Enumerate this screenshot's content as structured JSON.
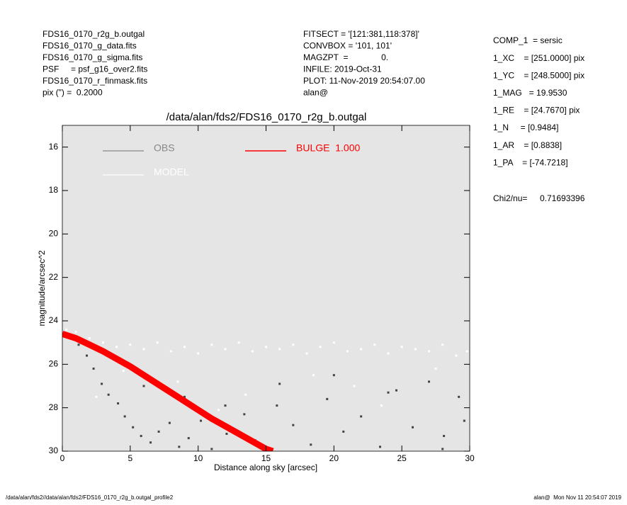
{
  "header": {
    "left": [
      "FDS16_0170_r2g_b.outgal",
      "FDS16_0170_g_data.fits",
      "FDS16_0170_g_sigma.fits",
      "PSF     = psf_g16_over2.fits",
      "FDS16_0170_r_finmask.fits",
      "pix (\") =  0.2000"
    ],
    "middle": [
      "FITSECT = '[121:381,118:378]'",
      "CONVBOX = '101, 101'",
      "MAGZPT  =              0.",
      "INFILE: 2019-Oct-31",
      "PLOT: 11-Nov-2019 20:54:07.00",
      "alan@"
    ],
    "right": [
      "COMP_1  = sersic",
      "1_XC    = [251.0000] pix",
      "1_YC    = [248.5000] pix",
      "1_MAG   = 19.9530",
      "1_RE    = [24.7670] pix",
      "1_N     = [0.9484]",
      "1_AR    = [0.8838]",
      "1_PA    = [-74.7218]"
    ],
    "chi2_label": "Chi2/nu=",
    "chi2_value": "0.71693396"
  },
  "footer": {
    "left": "/data/alan/fds2//data/alan/fds2/FDS16_0170_r2g_b.outgal_profile2",
    "right": "alan@  Mon Nov 11 20:54:07 2019"
  },
  "chart_data": {
    "type": "scatter",
    "title": "/data/alan/fds2/FDS16_0170_r2g_b.outgal",
    "xlabel": "Distance along sky [arcsec]",
    "ylabel": "magnitude/arcsec^2",
    "xlim": [
      0,
      30
    ],
    "ylim": [
      30,
      15
    ],
    "xticks": [
      0,
      5,
      10,
      15,
      20,
      25,
      30
    ],
    "yticks": [
      16,
      18,
      20,
      22,
      24,
      26,
      28,
      30
    ],
    "background": "#e5e5e5",
    "series": [
      {
        "name": "OBS",
        "color": "#888888",
        "point_color": "#444444",
        "x": [
          0.5,
          1.2,
          1.8,
          2.3,
          2.9,
          3.4,
          4.1,
          4.6,
          5.2,
          5.8,
          6.5,
          7.1,
          7.9,
          8.6,
          9.3,
          10.2,
          11,
          12.1,
          13.4,
          14.2,
          15.8,
          17,
          18.3,
          19.5,
          20.7,
          22,
          23.4,
          24.6,
          25.8,
          27,
          28.1,
          29.2,
          29.6,
          6,
          9,
          12,
          16,
          20,
          24,
          28
        ],
        "values": [
          24.7,
          25.1,
          25.6,
          26.2,
          26.9,
          27.4,
          27.8,
          28.4,
          28.9,
          29.3,
          29.6,
          29.1,
          28.7,
          29.8,
          29.4,
          28.6,
          29.9,
          29.2,
          28.3,
          29.5,
          27.9,
          28.8,
          29.7,
          27.6,
          29.1,
          28.4,
          29.8,
          27.2,
          28.9,
          26.8,
          29.3,
          27.5,
          28.6,
          27.0,
          27.5,
          27.9,
          26.9,
          26.5,
          27.3,
          29.9
        ]
      },
      {
        "name": "MODEL",
        "color": "#ffffff",
        "point_color": "#ffffff",
        "x": [
          0.3,
          1,
          2,
          3,
          4,
          5,
          6,
          7,
          8,
          9,
          10,
          11,
          12,
          13,
          14,
          15,
          16,
          17,
          18,
          19,
          20,
          21,
          22,
          23,
          24,
          25,
          26,
          27,
          28,
          29,
          29.8,
          4.5,
          8.5,
          13.5,
          18.5,
          23.5,
          27.5,
          2.5,
          11.5,
          21.5
        ],
        "values": [
          24.4,
          24.5,
          24.8,
          25.0,
          25.2,
          25.1,
          25.3,
          25.0,
          25.4,
          25.2,
          25.5,
          25.1,
          25.3,
          25.0,
          25.4,
          25.2,
          25.3,
          25.1,
          25.5,
          25.2,
          25.0,
          25.4,
          25.3,
          25.1,
          25.5,
          25.2,
          25.3,
          25.4,
          25.1,
          25.6,
          25.4,
          26.3,
          26.8,
          27.4,
          26.5,
          27.9,
          26.2,
          27.5,
          28.1,
          27.0
        ]
      },
      {
        "name": "BULGE  1.000",
        "color": "#ff0000",
        "line": true,
        "x": [
          0,
          1,
          2,
          3,
          4,
          5,
          6,
          7,
          8,
          9,
          10,
          11,
          12,
          13,
          14,
          15,
          15.5
        ],
        "values": [
          24.6,
          24.8,
          25.1,
          25.4,
          25.75,
          26.1,
          26.5,
          26.9,
          27.3,
          27.7,
          28.1,
          28.5,
          28.85,
          29.2,
          29.55,
          29.9,
          30
        ]
      }
    ]
  }
}
